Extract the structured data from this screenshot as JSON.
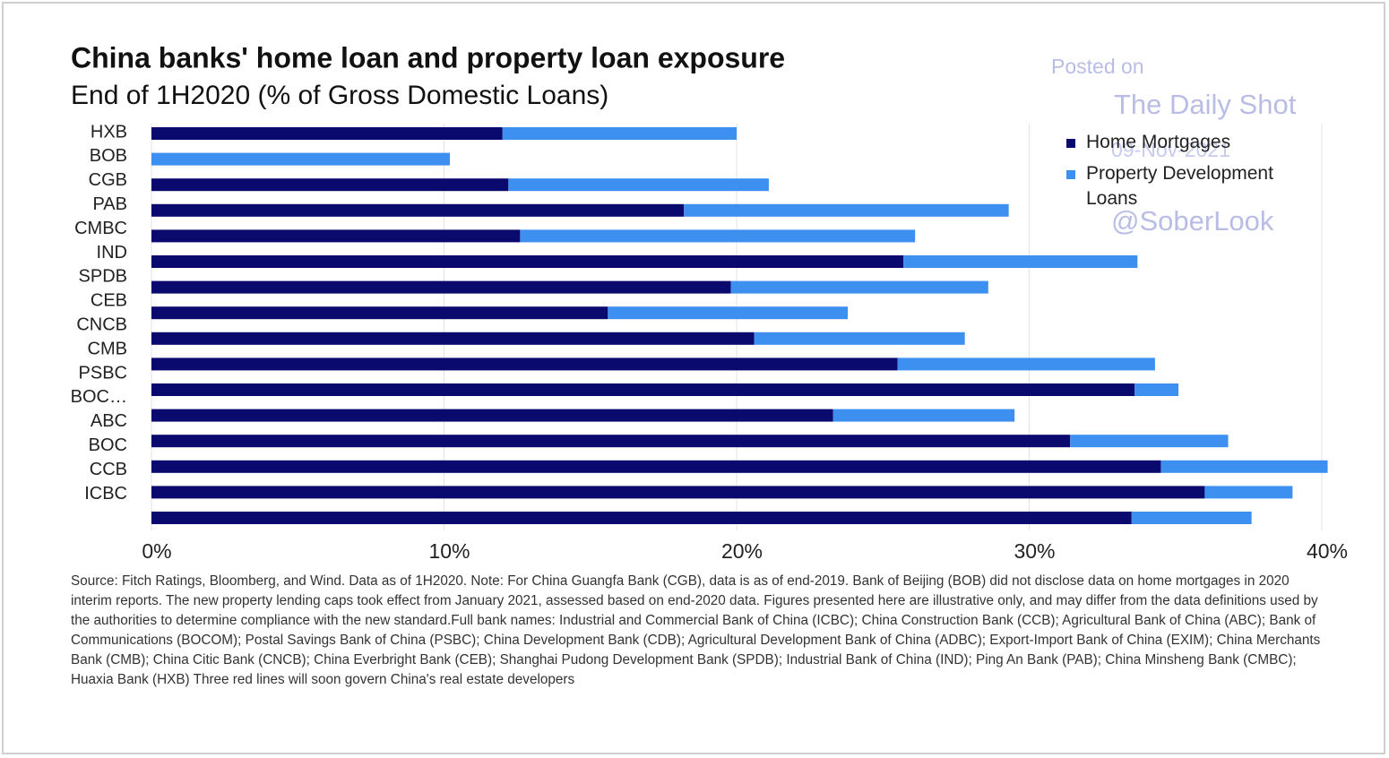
{
  "chart_data": {
    "type": "stacked_bar_horizontal",
    "title": "China banks' home loan and property loan exposure",
    "subtitle": "End of 1H2020 (% of Gross Domestic Loans)",
    "categories": [
      "HXB",
      "BOB",
      "CGB",
      "PAB",
      "CMBC",
      "IND",
      "SPDB",
      "CEB",
      "CNCB",
      "CMB",
      "PSBC",
      "BOC…",
      "ABC",
      "BOC",
      "CCB",
      "ICBC"
    ],
    "series": [
      {
        "name": "Home Mortgages",
        "color": "#0a0a6e",
        "values": [
          12.0,
          null,
          12.2,
          18.2,
          12.6,
          25.7,
          19.8,
          15.6,
          20.6,
          25.5,
          33.6,
          23.3,
          31.4,
          34.5,
          36.0,
          33.5
        ]
      },
      {
        "name": "Property Development Loans",
        "color": "#3d8ff0",
        "values": [
          8.0,
          10.2,
          8.9,
          11.1,
          13.5,
          8.0,
          8.8,
          8.2,
          7.2,
          8.8,
          1.5,
          6.2,
          5.4,
          5.7,
          3.0,
          4.1
        ]
      }
    ],
    "xlim": [
      0,
      40
    ],
    "xticks": [
      {
        "value": 0,
        "label": "0%"
      },
      {
        "value": 10,
        "label": "10%"
      },
      {
        "value": 20,
        "label": "20%"
      },
      {
        "value": 30,
        "label": "30%"
      },
      {
        "value": 40,
        "label": "40%"
      }
    ],
    "grid": true,
    "legend": "upper right",
    "note": "Source: Fitch Ratings, Bloomberg, and Wind. Data as of 1H2020. Note: For China Guangfa Bank (CGB), data is as of end-2019. Bank of Beijing (BOB) did not disclose data on home mortgages in 2020 interim reports. The new property lending caps took effect from January 2021, assessed based on end-2020 data. Figures presented here are illustrative only, and may differ from the data definitions used by the authorities to determine compliance with the new standard.Full bank names: Industrial and Commercial Bank of China (ICBC); China Construction Bank (CCB); Agricultural Bank of China (ABC); Bank of Communications (BOCOM); Postal Savings Bank of China (PSBC); China Development Bank (CDB); Agricultural Development Bank of China (ADBC); Export-Import Bank of China (EXIM); China Merchants Bank (CMB); China Citic Bank (CNCB); China Everbright Bank (CEB); Shanghai Pudong Development Bank (SPDB); Industrial Bank of China (IND); Ping An Bank (PAB); China Minsheng Bank (CMBC); Huaxia Bank (HXB) Three red lines will soon govern China's real estate developers",
    "watermark": [
      "Posted on",
      "The Daily Shot",
      "09-Nov-2021",
      "@SoberLook"
    ]
  }
}
